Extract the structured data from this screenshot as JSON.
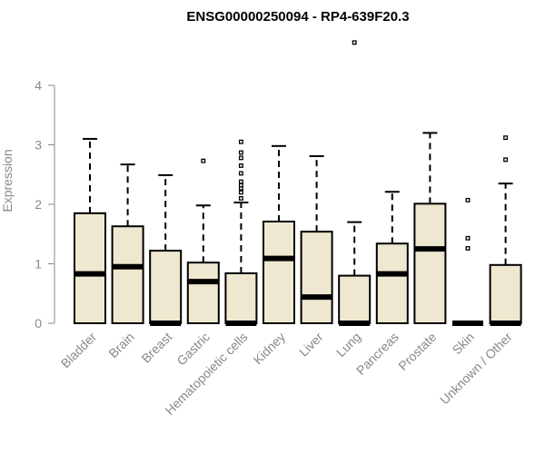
{
  "chart_data": {
    "type": "boxplot",
    "title": "ENSG00000250094 - RP4-639F20.3",
    "ylabel": "Expression",
    "xlabel": "",
    "ylim": [
      0,
      4
    ],
    "yticks": [
      0,
      1,
      2,
      3,
      4
    ],
    "grid": false,
    "box_color": "#efe8d0",
    "categories": [
      "Bladder",
      "Brain",
      "Breast",
      "Gastric",
      "Hematopoietic cells",
      "Kidney",
      "Liver",
      "Lung",
      "Pancreas",
      "Prostate",
      "Skin",
      "Unknown / Other"
    ],
    "series": [
      {
        "q1": 0,
        "median": 0.83,
        "q3": 1.85,
        "whisker_low": 0,
        "whisker_high": 3.1,
        "outliers": []
      },
      {
        "q1": 0,
        "median": 0.95,
        "q3": 1.63,
        "whisker_low": 0,
        "whisker_high": 2.67,
        "outliers": []
      },
      {
        "q1": 0,
        "median": 0,
        "q3": 1.22,
        "whisker_low": 0,
        "whisker_high": 2.49,
        "outliers": []
      },
      {
        "q1": 0,
        "median": 0.7,
        "q3": 1.02,
        "whisker_low": 0,
        "whisker_high": 1.98,
        "outliers": [
          2.73
        ]
      },
      {
        "q1": 0,
        "median": 0,
        "q3": 0.84,
        "whisker_low": 0,
        "whisker_high": 2.03,
        "outliers": [
          2.1,
          2.2,
          2.27,
          2.32,
          2.38,
          2.52,
          2.65,
          2.78,
          2.87,
          3.05
        ]
      },
      {
        "q1": 0,
        "median": 1.09,
        "q3": 1.71,
        "whisker_low": 0,
        "whisker_high": 2.98,
        "outliers": []
      },
      {
        "q1": 0,
        "median": 0.44,
        "q3": 1.54,
        "whisker_low": 0,
        "whisker_high": 2.81,
        "outliers": []
      },
      {
        "q1": 0,
        "median": 0,
        "q3": 0.8,
        "whisker_low": 0,
        "whisker_high": 1.7,
        "outliers": [
          4.72
        ]
      },
      {
        "q1": 0,
        "median": 0.83,
        "q3": 1.34,
        "whisker_low": 0,
        "whisker_high": 2.21,
        "outliers": []
      },
      {
        "q1": 0,
        "median": 1.25,
        "q3": 2.01,
        "whisker_low": 0,
        "whisker_high": 3.2,
        "outliers": []
      },
      {
        "q1": 0,
        "median": 0,
        "q3": 0,
        "whisker_low": 0,
        "whisker_high": 0,
        "outliers": [
          1.26,
          1.43,
          2.07
        ]
      },
      {
        "q1": 0,
        "median": 0,
        "q3": 0.98,
        "whisker_low": 0,
        "whisker_high": 2.35,
        "outliers": [
          2.75,
          3.12
        ]
      }
    ]
  }
}
